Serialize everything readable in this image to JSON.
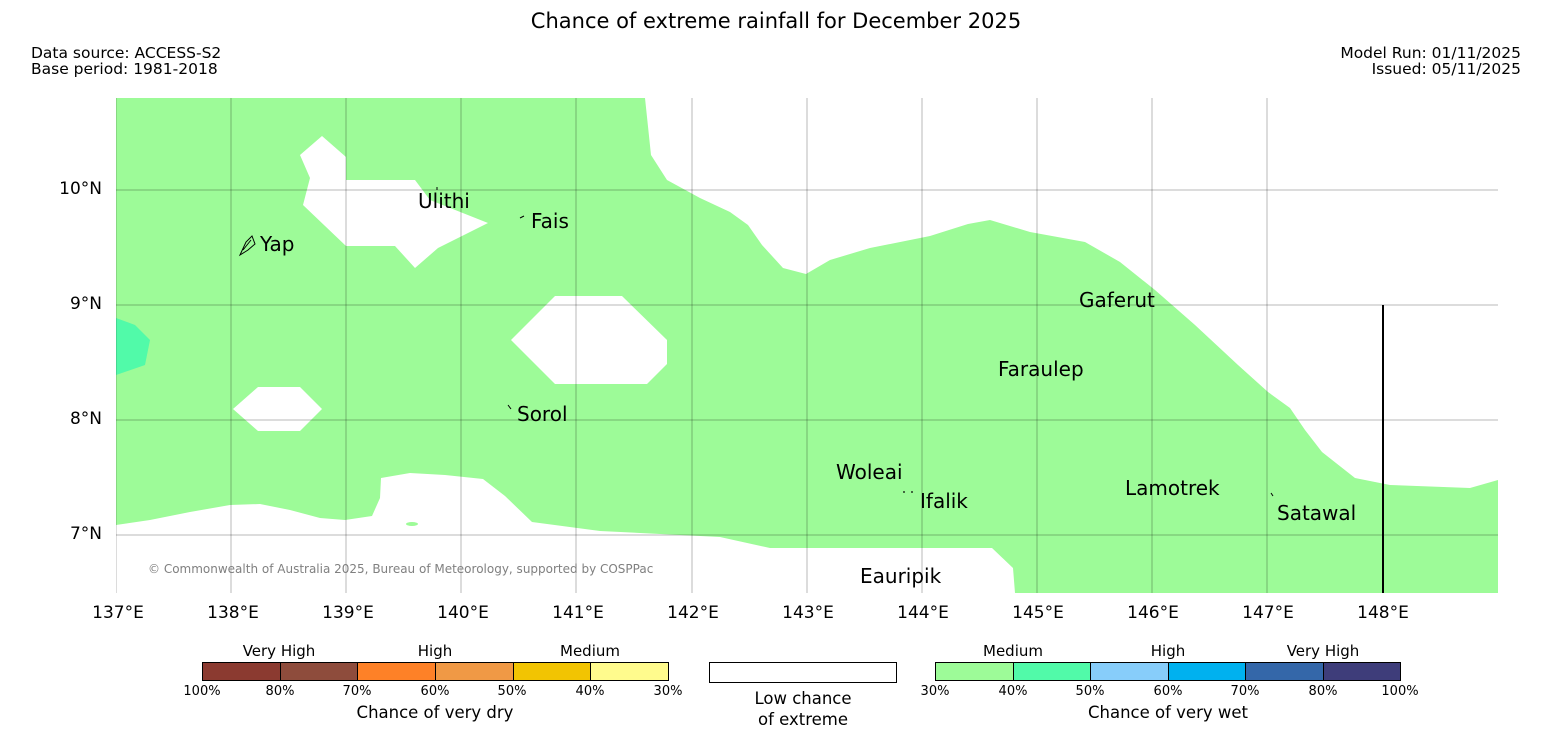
{
  "title": "Chance of extreme rainfall for December 2025",
  "meta": {
    "data_source": "Data source: ACCESS-S2",
    "base_period": "Base period: 1981-2018",
    "model_run": "Model Run: 01/11/2025",
    "issued": "Issued: 05/11/2025"
  },
  "map": {
    "lat_labels": [
      "10°N",
      "9°N",
      "8°N",
      "7°N"
    ],
    "lon_labels": [
      "137°E",
      "138°E",
      "139°E",
      "140°E",
      "141°E",
      "142°E",
      "143°E",
      "144°E",
      "145°E",
      "146°E",
      "147°E",
      "148°E"
    ],
    "places": {
      "yap": "Yap",
      "ulithi": "Ulithi",
      "fais": "Fais",
      "sorol": "Sorol",
      "gaferut": "Gaferut",
      "faraulep": "Faraulep",
      "woleai": "Woleai",
      "ifalik": "Ifalik",
      "lamotrek": "Lamotrek",
      "satawal": "Satawal",
      "eauripik": "Eauripik"
    },
    "copyright": "© Commonwealth of Australia 2025, Bureau of Meteorology, supported by COSPPac",
    "colors": {
      "medium_wet": "#9dfb98",
      "high_wet_40_50": "#51faa9",
      "low_chance": "#ffffff"
    }
  },
  "legend": {
    "dry": {
      "categories": [
        "Very High",
        "High",
        "Medium"
      ],
      "ticks": [
        "100%",
        "80%",
        "70%",
        "60%",
        "50%",
        "40%",
        "30%"
      ],
      "title": "Chance of very dry",
      "colors": [
        "#8b3a30",
        "#8e4c3c",
        "#fe8127",
        "#f09945",
        "#f2c402",
        "#fffb8d"
      ]
    },
    "low": {
      "line1": "Low chance",
      "line2": "of extreme"
    },
    "wet": {
      "categories": [
        "Medium",
        "High",
        "Very High"
      ],
      "ticks": [
        "30%",
        "40%",
        "50%",
        "60%",
        "70%",
        "80%",
        "100%"
      ],
      "title": "Chance of very wet",
      "colors": [
        "#9dfb98",
        "#51faa9",
        "#87cdfa",
        "#00b1ef",
        "#3467a9",
        "#3e3d7a"
      ]
    }
  }
}
